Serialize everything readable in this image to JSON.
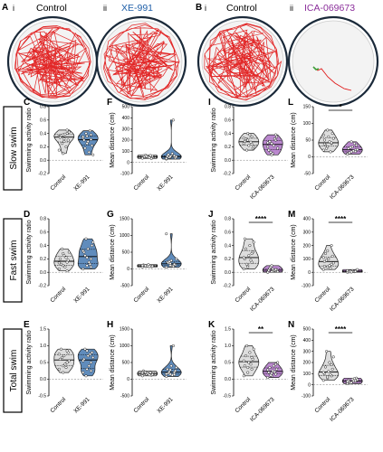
{
  "figure": {
    "panel_A": {
      "letter": "A",
      "sub_i": "i",
      "sub_ii": "ii",
      "title_i": "Control",
      "title_ii": "XE-991"
    },
    "panel_B": {
      "letter": "B",
      "sub_i": "i",
      "sub_ii": "ii",
      "title_i": "Control",
      "title_ii": "ICA-069673"
    },
    "rows": [
      "Slow swim",
      "Fast swim",
      "Total swim"
    ],
    "colors": {
      "control": "#d9d9d9",
      "xe991": "#4f7fb5",
      "ica": "#b27bc9",
      "track": "#e01a1a",
      "blue_title": "#1f5fa8",
      "purple_title": "#8a2d9a"
    }
  },
  "chart_data": [
    {
      "panel": "C",
      "type": "violin",
      "ylabel": "Swimming activity ratio",
      "ylim": [
        -0.2,
        0.8
      ],
      "yticks": [
        "-0.2",
        "0.0",
        "0.2",
        "0.4",
        "0.6",
        "0.8"
      ],
      "categories": [
        "Control",
        "XE-991"
      ],
      "distributions": [
        [
          0.36,
          0.38,
          0.4,
          0.35,
          0.32,
          0.3,
          0.37,
          0.39,
          0.42,
          0.25,
          0.2,
          0.15,
          0.1,
          0.45,
          0.34,
          0.28
        ],
        [
          0.33,
          0.36,
          0.38,
          0.3,
          0.28,
          0.22,
          0.18,
          0.12,
          0.08,
          0.4,
          0.44,
          0.35,
          0.25,
          0.31
        ]
      ],
      "significance": null
    },
    {
      "panel": "F",
      "type": "violin",
      "ylabel": "Mean distance (cm)",
      "ylim": [
        -100,
        500
      ],
      "yticks": [
        "-100",
        "0",
        "100",
        "200",
        "300",
        "400",
        "500"
      ],
      "categories": [
        "Control",
        "XE-991"
      ],
      "distributions": [
        [
          40,
          50,
          55,
          60,
          45,
          35,
          52,
          48,
          58,
          65,
          42,
          38,
          55,
          62
        ],
        [
          30,
          45,
          50,
          55,
          60,
          40,
          70,
          80,
          50,
          45,
          380,
          35,
          55,
          60
        ]
      ],
      "significance": null
    },
    {
      "panel": "I",
      "type": "violin",
      "ylabel": "Swimming activity ratio",
      "ylim": [
        -0.2,
        0.8
      ],
      "yticks": [
        "-0.2",
        "0.0",
        "0.2",
        "0.4",
        "0.6",
        "0.8"
      ],
      "categories": [
        "Control",
        "ICA-069673"
      ],
      "distributions": [
        [
          0.25,
          0.3,
          0.35,
          0.28,
          0.22,
          0.18,
          0.32,
          0.38,
          0.2,
          0.15,
          0.27,
          0.33,
          0.4,
          0.24
        ],
        [
          0.2,
          0.25,
          0.3,
          0.15,
          0.1,
          0.35,
          0.28,
          0.22,
          0.18,
          0.12,
          0.32,
          0.26,
          0.08,
          0.38
        ]
      ],
      "significance": null
    },
    {
      "panel": "L",
      "type": "violin",
      "ylabel": "Mean distance (cm)",
      "ylim": [
        -50,
        150
      ],
      "yticks": [
        "-50",
        "0",
        "50",
        "100",
        "150"
      ],
      "categories": [
        "Control",
        "ICA-069673"
      ],
      "distributions": [
        [
          20,
          30,
          40,
          50,
          60,
          70,
          35,
          45,
          55,
          25,
          15,
          65,
          80,
          42,
          38
        ],
        [
          10,
          15,
          20,
          25,
          30,
          35,
          12,
          18,
          22,
          28,
          40,
          8,
          45,
          16
        ]
      ],
      "significance": "*"
    },
    {
      "panel": "D",
      "type": "violin",
      "ylabel": "Swimming activity ratio",
      "ylim": [
        -0.2,
        0.8
      ],
      "yticks": [
        "-0.2",
        "0.0",
        "0.2",
        "0.4",
        "0.6",
        "0.8"
      ],
      "categories": [
        "Control",
        "XE-991"
      ],
      "distributions": [
        [
          0.05,
          0.1,
          0.15,
          0.2,
          0.25,
          0.18,
          0.12,
          0.08,
          0.3,
          0.35,
          0.22,
          0.14,
          0.28,
          0.02
        ],
        [
          0.05,
          0.1,
          0.2,
          0.3,
          0.35,
          0.4,
          0.25,
          0.15,
          0.45,
          0.5,
          0.12,
          0.32,
          0.22,
          0.08
        ]
      ],
      "significance": null
    },
    {
      "panel": "G",
      "type": "violin",
      "ylabel": "Mean distance (cm)",
      "ylim": [
        -500,
        1500
      ],
      "yticks": [
        "-500",
        "0",
        "500",
        "1000",
        "1500"
      ],
      "categories": [
        "Control",
        "XE-991"
      ],
      "distributions": [
        [
          60,
          80,
          100,
          120,
          90,
          70,
          110,
          130,
          85,
          95,
          75,
          105
        ],
        [
          50,
          100,
          150,
          200,
          250,
          120,
          180,
          90,
          300,
          220,
          80,
          1050,
          160,
          140
        ]
      ],
      "significance": null
    },
    {
      "panel": "J",
      "type": "violin",
      "ylabel": "Swimming activity ratio",
      "ylim": [
        -0.2,
        0.8
      ],
      "yticks": [
        "-0.2",
        "0.0",
        "0.2",
        "0.4",
        "0.6",
        "0.8"
      ],
      "categories": [
        "Control",
        "ICA-069673"
      ],
      "distributions": [
        [
          0.05,
          0.1,
          0.15,
          0.2,
          0.25,
          0.3,
          0.35,
          0.4,
          0.45,
          0.12,
          0.18,
          0.22,
          0.08,
          0.28,
          0.5
        ],
        [
          0.0,
          0.01,
          0.02,
          0.03,
          0.05,
          0.04,
          0.06,
          0.02,
          0.01,
          0.08,
          0.03,
          0.0,
          0.1,
          0.04
        ]
      ],
      "significance": "****"
    },
    {
      "panel": "M",
      "type": "violin",
      "ylabel": "Mean distance (cm)",
      "ylim": [
        -100,
        400
      ],
      "yticks": [
        "-100",
        "0",
        "100",
        "200",
        "300",
        "400"
      ],
      "categories": [
        "Control",
        "ICA-069673"
      ],
      "distributions": [
        [
          20,
          40,
          60,
          80,
          100,
          120,
          140,
          50,
          70,
          90,
          30,
          110,
          160,
          200,
          45
        ],
        [
          0,
          5,
          10,
          8,
          12,
          15,
          3,
          6,
          20,
          9,
          4,
          11,
          2,
          7
        ]
      ],
      "significance": "****"
    },
    {
      "panel": "E",
      "type": "violin",
      "ylabel": "Swimming activity ratio",
      "ylim": [
        -0.5,
        1.5
      ],
      "yticks": [
        "-0.5",
        "0.0",
        "0.5",
        "1.0",
        "1.5"
      ],
      "categories": [
        "Control",
        "XE-991"
      ],
      "distributions": [
        [
          0.3,
          0.4,
          0.5,
          0.6,
          0.7,
          0.8,
          0.9,
          0.45,
          0.55,
          0.65,
          0.35,
          0.75,
          0.2,
          0.85
        ],
        [
          0.2,
          0.3,
          0.5,
          0.6,
          0.7,
          0.8,
          0.9,
          0.4,
          0.65,
          0.1,
          0.75,
          0.55,
          0.85,
          0.25
        ]
      ],
      "significance": null
    },
    {
      "panel": "H",
      "type": "violin",
      "ylabel": "Mean distance (cm)",
      "ylim": [
        -500,
        1500
      ],
      "yticks": [
        "-500",
        "0",
        "500",
        "1000",
        "1500"
      ],
      "categories": [
        "Control",
        "XE-991"
      ],
      "distributions": [
        [
          100,
          150,
          200,
          250,
          180,
          120,
          220,
          160,
          140,
          210,
          130,
          190
        ],
        [
          80,
          150,
          200,
          300,
          400,
          250,
          180,
          120,
          350,
          220,
          1000,
          160,
          280,
          140
        ]
      ],
      "significance": null
    },
    {
      "panel": "K",
      "type": "violin",
      "ylabel": "Swimming activity ratio",
      "ylim": [
        -0.5,
        1.5
      ],
      "yticks": [
        "-0.5",
        "0.0",
        "0.5",
        "1.0",
        "1.5"
      ],
      "categories": [
        "Control",
        "ICA-069673"
      ],
      "distributions": [
        [
          0.1,
          0.2,
          0.3,
          0.4,
          0.5,
          0.6,
          0.7,
          0.8,
          0.9,
          1.0,
          0.45,
          0.55,
          0.35,
          0.65
        ],
        [
          0.05,
          0.1,
          0.15,
          0.2,
          0.25,
          0.3,
          0.35,
          0.4,
          0.5,
          0.12,
          0.22,
          0.28,
          0.18,
          0.45
        ]
      ],
      "significance": "**"
    },
    {
      "panel": "N",
      "type": "violin",
      "ylabel": "Mean distance (cm)",
      "ylim": [
        -100,
        500
      ],
      "yticks": [
        "-100",
        "0",
        "100",
        "200",
        "300",
        "400",
        "500"
      ],
      "categories": [
        "Control",
        "ICA-069673"
      ],
      "distributions": [
        [
          40,
          60,
          80,
          100,
          120,
          140,
          160,
          200,
          250,
          300,
          90,
          110,
          70,
          180
        ],
        [
          10,
          20,
          30,
          40,
          50,
          60,
          25,
          35,
          45,
          15,
          55,
          30,
          20,
          40
        ]
      ],
      "significance": "****"
    }
  ]
}
